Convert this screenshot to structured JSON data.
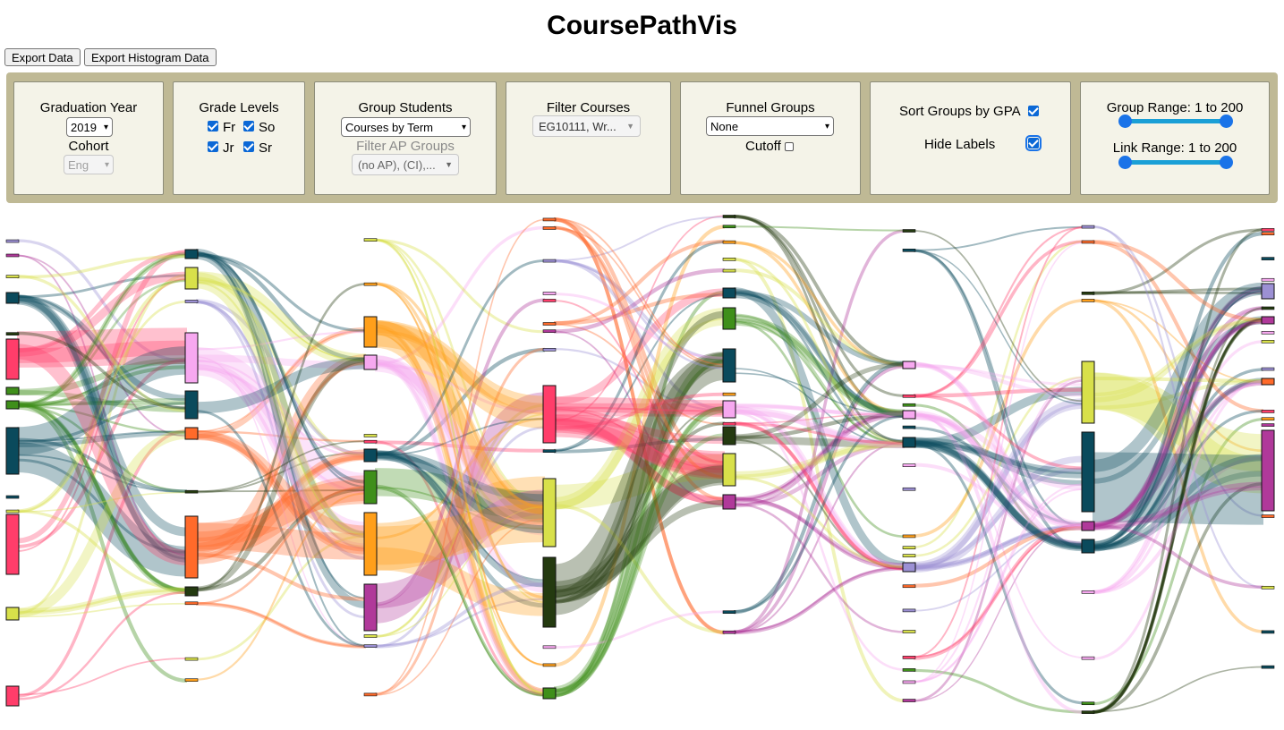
{
  "app": {
    "title": "CoursePathVis"
  },
  "toolbar": {
    "export_data": "Export Data",
    "export_histogram": "Export Histogram Data"
  },
  "controls": {
    "graduation_year": {
      "label": "Graduation Year",
      "value": "2019"
    },
    "cohort": {
      "label": "Cohort",
      "value": "Eng"
    },
    "grade_levels": {
      "label": "Grade Levels",
      "fr": "Fr",
      "so": "So",
      "jr": "Jr",
      "sr": "Sr"
    },
    "group_students": {
      "label": "Group Students",
      "value": "Courses by Term"
    },
    "filter_ap": {
      "label": "Filter AP Groups",
      "value": "(no AP), (CI),..."
    },
    "filter_courses": {
      "label": "Filter Courses",
      "value": "EG10111, Wr..."
    },
    "funnel_groups": {
      "label": "Funnel Groups",
      "value": "None",
      "cutoff": "Cutoff"
    },
    "sort_gpa": {
      "label": "Sort Groups by GPA"
    },
    "hide_labels": {
      "label": "Hide Labels"
    },
    "group_range": {
      "label": "Group Range: 1 to 200",
      "min": 1,
      "max": 200
    },
    "link_range": {
      "label": "Link Range: 1 to 200",
      "min": 1,
      "max": 200
    }
  },
  "colors": {
    "panel_bg": "#f4f3e8",
    "controls_bg": "#bfb995",
    "red": "#ff3d6a",
    "dark_teal": "#0a4a5c",
    "orange": "#ff9f1a",
    "dark_orange": "#ff6a2a",
    "yellow_green": "#d8e04a",
    "green": "#3f8f1a",
    "dark_olive": "#243a10",
    "pink": "#f7a8f0",
    "purple": "#b0399a",
    "lavender": "#9c90d4"
  }
}
